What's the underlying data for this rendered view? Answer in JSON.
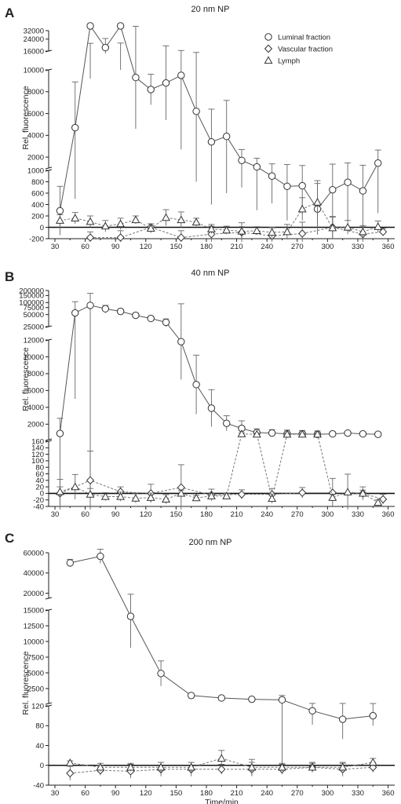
{
  "chart_data": [
    {
      "type": "line",
      "panel_letter": "A",
      "title": "20 nm NP",
      "ylabel": "Rel. fluorescence",
      "xlabel": "",
      "xlim": [
        30,
        365
      ],
      "x_ticks": [
        30,
        60,
        90,
        120,
        150,
        180,
        210,
        240,
        270,
        300,
        330,
        360
      ],
      "legend": {
        "placement": "top-right",
        "entries": [
          "Luminal fraction",
          "Vascular fraction",
          "Lymph"
        ]
      },
      "y_segments": [
        {
          "range": [
            16000,
            32000
          ],
          "ticks": [
            16000,
            24000,
            32000
          ],
          "tick_labels": [
            "16000",
            "24000",
            "32000"
          ],
          "scale": "log"
        },
        {
          "range": [
            1000,
            10000
          ],
          "ticks": [
            2000,
            4000,
            6000,
            8000,
            10000
          ],
          "tick_labels": [
            "2000",
            "4000",
            "6000",
            "8000",
            "10000"
          ],
          "scale": "linear"
        },
        {
          "range": [
            -200,
            1000
          ],
          "ticks": [
            -200,
            0,
            200,
            400,
            600,
            800,
            1000
          ],
          "tick_labels": [
            "-200",
            "0",
            "200",
            "400",
            "600",
            "800",
            "1000"
          ],
          "scale": "linear"
        }
      ],
      "series": [
        {
          "name": "Luminal fraction",
          "marker": "circle",
          "x": [
            35,
            50,
            65,
            80,
            95,
            110,
            125,
            140,
            155,
            170,
            185,
            200,
            215,
            230,
            245,
            260,
            275,
            290,
            305,
            320,
            335,
            350
          ],
          "y": [
            290,
            4700,
            15000,
            18000,
            15500,
            9300,
            8200,
            8800,
            9500,
            6200,
            3400,
            3900,
            1700,
            1100,
            900,
            720,
            730,
            320,
            660,
            790,
            640,
            1450
          ],
          "err": [
            430,
            4200,
            5800,
            6500,
            5500,
            4700,
            1400,
            3400,
            6800,
            5400,
            3000,
            3300,
            1000,
            800,
            480,
            600,
            500,
            450,
            700,
            680,
            620,
            1200
          ]
        },
        {
          "name": "Vascular fraction",
          "marker": "diamond",
          "x": [
            65,
            95,
            125,
            155,
            185,
            215,
            245,
            275,
            305,
            335,
            355
          ],
          "y": [
            -180,
            -180,
            0,
            -180,
            -120,
            -90,
            -150,
            -110,
            0,
            -120,
            -80
          ],
          "err": [
            100,
            120,
            60,
            120,
            140,
            170,
            140,
            200,
            180,
            150,
            60
          ]
        },
        {
          "name": "Lymph",
          "marker": "triangle",
          "x": [
            35,
            50,
            65,
            80,
            95,
            110,
            125,
            140,
            155,
            170,
            185,
            200,
            215,
            230,
            245,
            260,
            275,
            290,
            305,
            320,
            335,
            350
          ],
          "y": [
            120,
            160,
            100,
            20,
            60,
            130,
            -20,
            170,
            130,
            90,
            -30,
            -50,
            -70,
            -60,
            -90,
            -80,
            320,
            440,
            -10,
            0,
            -80,
            10
          ],
          "err": [
            100,
            100,
            100,
            100,
            100,
            70,
            80,
            140,
            140,
            70,
            80,
            70,
            80,
            70,
            90,
            130,
            200,
            380,
            200,
            120,
            90,
            100
          ]
        }
      ]
    },
    {
      "type": "line",
      "panel_letter": "B",
      "title": "40 nm NP",
      "ylabel": "Rel. fluorescence",
      "xlabel": "",
      "xlim": [
        30,
        365
      ],
      "x_ticks": [
        30,
        60,
        90,
        120,
        150,
        180,
        210,
        240,
        270,
        300,
        330,
        360
      ],
      "y_segments": [
        {
          "range": [
            25000,
            200000
          ],
          "ticks": [
            25000,
            50000,
            75000,
            100000,
            150000,
            200000
          ],
          "tick_labels": [
            "25000",
            "50000",
            "75000",
            "100000",
            "150000",
            "200000"
          ],
          "scale": "log"
        },
        {
          "range": [
            160,
            12000
          ],
          "ticks": [
            2000,
            4000,
            6000,
            8000,
            10000,
            12000
          ],
          "tick_labels": [
            "2000",
            "4000",
            "6000",
            "8000",
            "10000",
            "12000"
          ],
          "scale": "linear"
        },
        {
          "range": [
            -40,
            160
          ],
          "ticks": [
            -40,
            -20,
            0,
            20,
            40,
            60,
            80,
            100,
            120,
            140,
            160
          ],
          "tick_labels": [
            "-40",
            "-20",
            "0",
            "20",
            "40",
            "60",
            "80",
            "100",
            "120",
            "140",
            "160"
          ],
          "scale": "linear"
        }
      ],
      "series": [
        {
          "name": "Luminal fraction",
          "marker": "circle",
          "x": [
            35,
            50,
            65,
            80,
            95,
            110,
            125,
            140,
            155,
            170,
            185,
            200,
            215,
            230,
            245,
            260,
            275,
            290,
            305,
            320,
            335,
            350
          ],
          "y": [
            900,
            55000,
            85000,
            70000,
            60000,
            48000,
            40000,
            32000,
            11800,
            6700,
            3900,
            2100,
            1500,
            1000,
            950,
            850,
            850,
            800,
            850,
            950,
            850,
            800
          ],
          "err": [
            1800,
            50000,
            85000,
            15000,
            8000,
            6000,
            5000,
            7000,
            4500,
            3500,
            2200,
            900,
            900,
            450,
            400,
            450,
            400,
            400,
            250,
            150,
            180,
            100
          ]
        },
        {
          "name": "Vascular fraction",
          "marker": "diamond",
          "x": [
            35,
            65,
            95,
            125,
            155,
            185,
            215,
            245,
            275,
            305,
            335,
            355
          ],
          "y": [
            0,
            40,
            5,
            0,
            18,
            -5,
            -3,
            -3,
            2,
            2,
            0,
            -18
          ],
          "err": [
            20,
            90,
            15,
            28,
            70,
            18,
            14,
            18,
            16,
            44,
            20,
            15
          ]
        },
        {
          "name": "Lymph",
          "marker": "triangle",
          "x": [
            35,
            50,
            65,
            80,
            95,
            110,
            125,
            140,
            155,
            170,
            185,
            200,
            215,
            230,
            245,
            260,
            275,
            290,
            305,
            320,
            335,
            350
          ],
          "y": [
            5,
            20,
            -3,
            -10,
            -10,
            -15,
            -13,
            -18,
            0,
            -14,
            -8,
            -8,
            850,
            800,
            -16,
            800,
            800,
            800,
            -13,
            4,
            0,
            -28
          ],
          "err": [
            38,
            38,
            18,
            12,
            14,
            14,
            14,
            14,
            10,
            8,
            8,
            8,
            120,
            120,
            14,
            120,
            120,
            120,
            10,
            55,
            10,
            8
          ]
        }
      ]
    },
    {
      "type": "line",
      "panel_letter": "C",
      "title": "200 nm NP",
      "ylabel": "Rel. fluorescence",
      "xlabel": "Time/min",
      "xlim": [
        30,
        365
      ],
      "x_ticks": [
        30,
        60,
        90,
        120,
        150,
        180,
        210,
        240,
        270,
        300,
        330,
        360
      ],
      "y_segments": [
        {
          "range": [
            15000,
            60000
          ],
          "ticks": [
            20000,
            40000,
            60000
          ],
          "tick_labels": [
            "20000",
            "40000",
            "60000"
          ],
          "scale": "linear"
        },
        {
          "range": [
            120,
            15000
          ],
          "ticks": [
            2500,
            5000,
            7500,
            10000,
            12500,
            15000
          ],
          "tick_labels": [
            "2500",
            "5000",
            "7500",
            "10000",
            "12500",
            "15000"
          ],
          "scale": "linear"
        },
        {
          "range": [
            -40,
            120
          ],
          "ticks": [
            -40,
            0,
            40,
            80,
            120
          ],
          "tick_labels": [
            "-40",
            "0",
            "40",
            "80",
            "120"
          ],
          "scale": "linear"
        }
      ],
      "series": [
        {
          "name": "Luminal fraction",
          "marker": "circle",
          "x": [
            45,
            75,
            105,
            135,
            165,
            195,
            225,
            255,
            285,
            315,
            345
          ],
          "y": [
            50000,
            56500,
            14000,
            4900,
            1400,
            1000,
            800,
            700,
            110,
            93,
            100
          ],
          "err": [
            3500,
            7000,
            5000,
            2000,
            0,
            0,
            0,
            700,
            28,
            40,
            20
          ]
        },
        {
          "name": "Vascular fraction",
          "marker": "diamond",
          "x": [
            45,
            75,
            105,
            135,
            165,
            195,
            225,
            255,
            285,
            315,
            345
          ],
          "y": [
            -16,
            -10,
            -12,
            -8,
            -8,
            -8,
            -8,
            -8,
            -4,
            -8,
            -4
          ],
          "err": [
            14,
            10,
            14,
            14,
            14,
            10,
            14,
            10,
            10,
            14,
            10
          ]
        },
        {
          "name": "Lymph",
          "marker": "triangle",
          "x": [
            45,
            75,
            105,
            135,
            165,
            195,
            225,
            255,
            285,
            315,
            345
          ],
          "y": [
            5,
            -4,
            -4,
            -4,
            -4,
            14,
            -4,
            -4,
            -4,
            -4,
            6
          ],
          "err": [
            4,
            8,
            8,
            10,
            10,
            16,
            16,
            8,
            8,
            8,
            8
          ]
        }
      ]
    }
  ]
}
